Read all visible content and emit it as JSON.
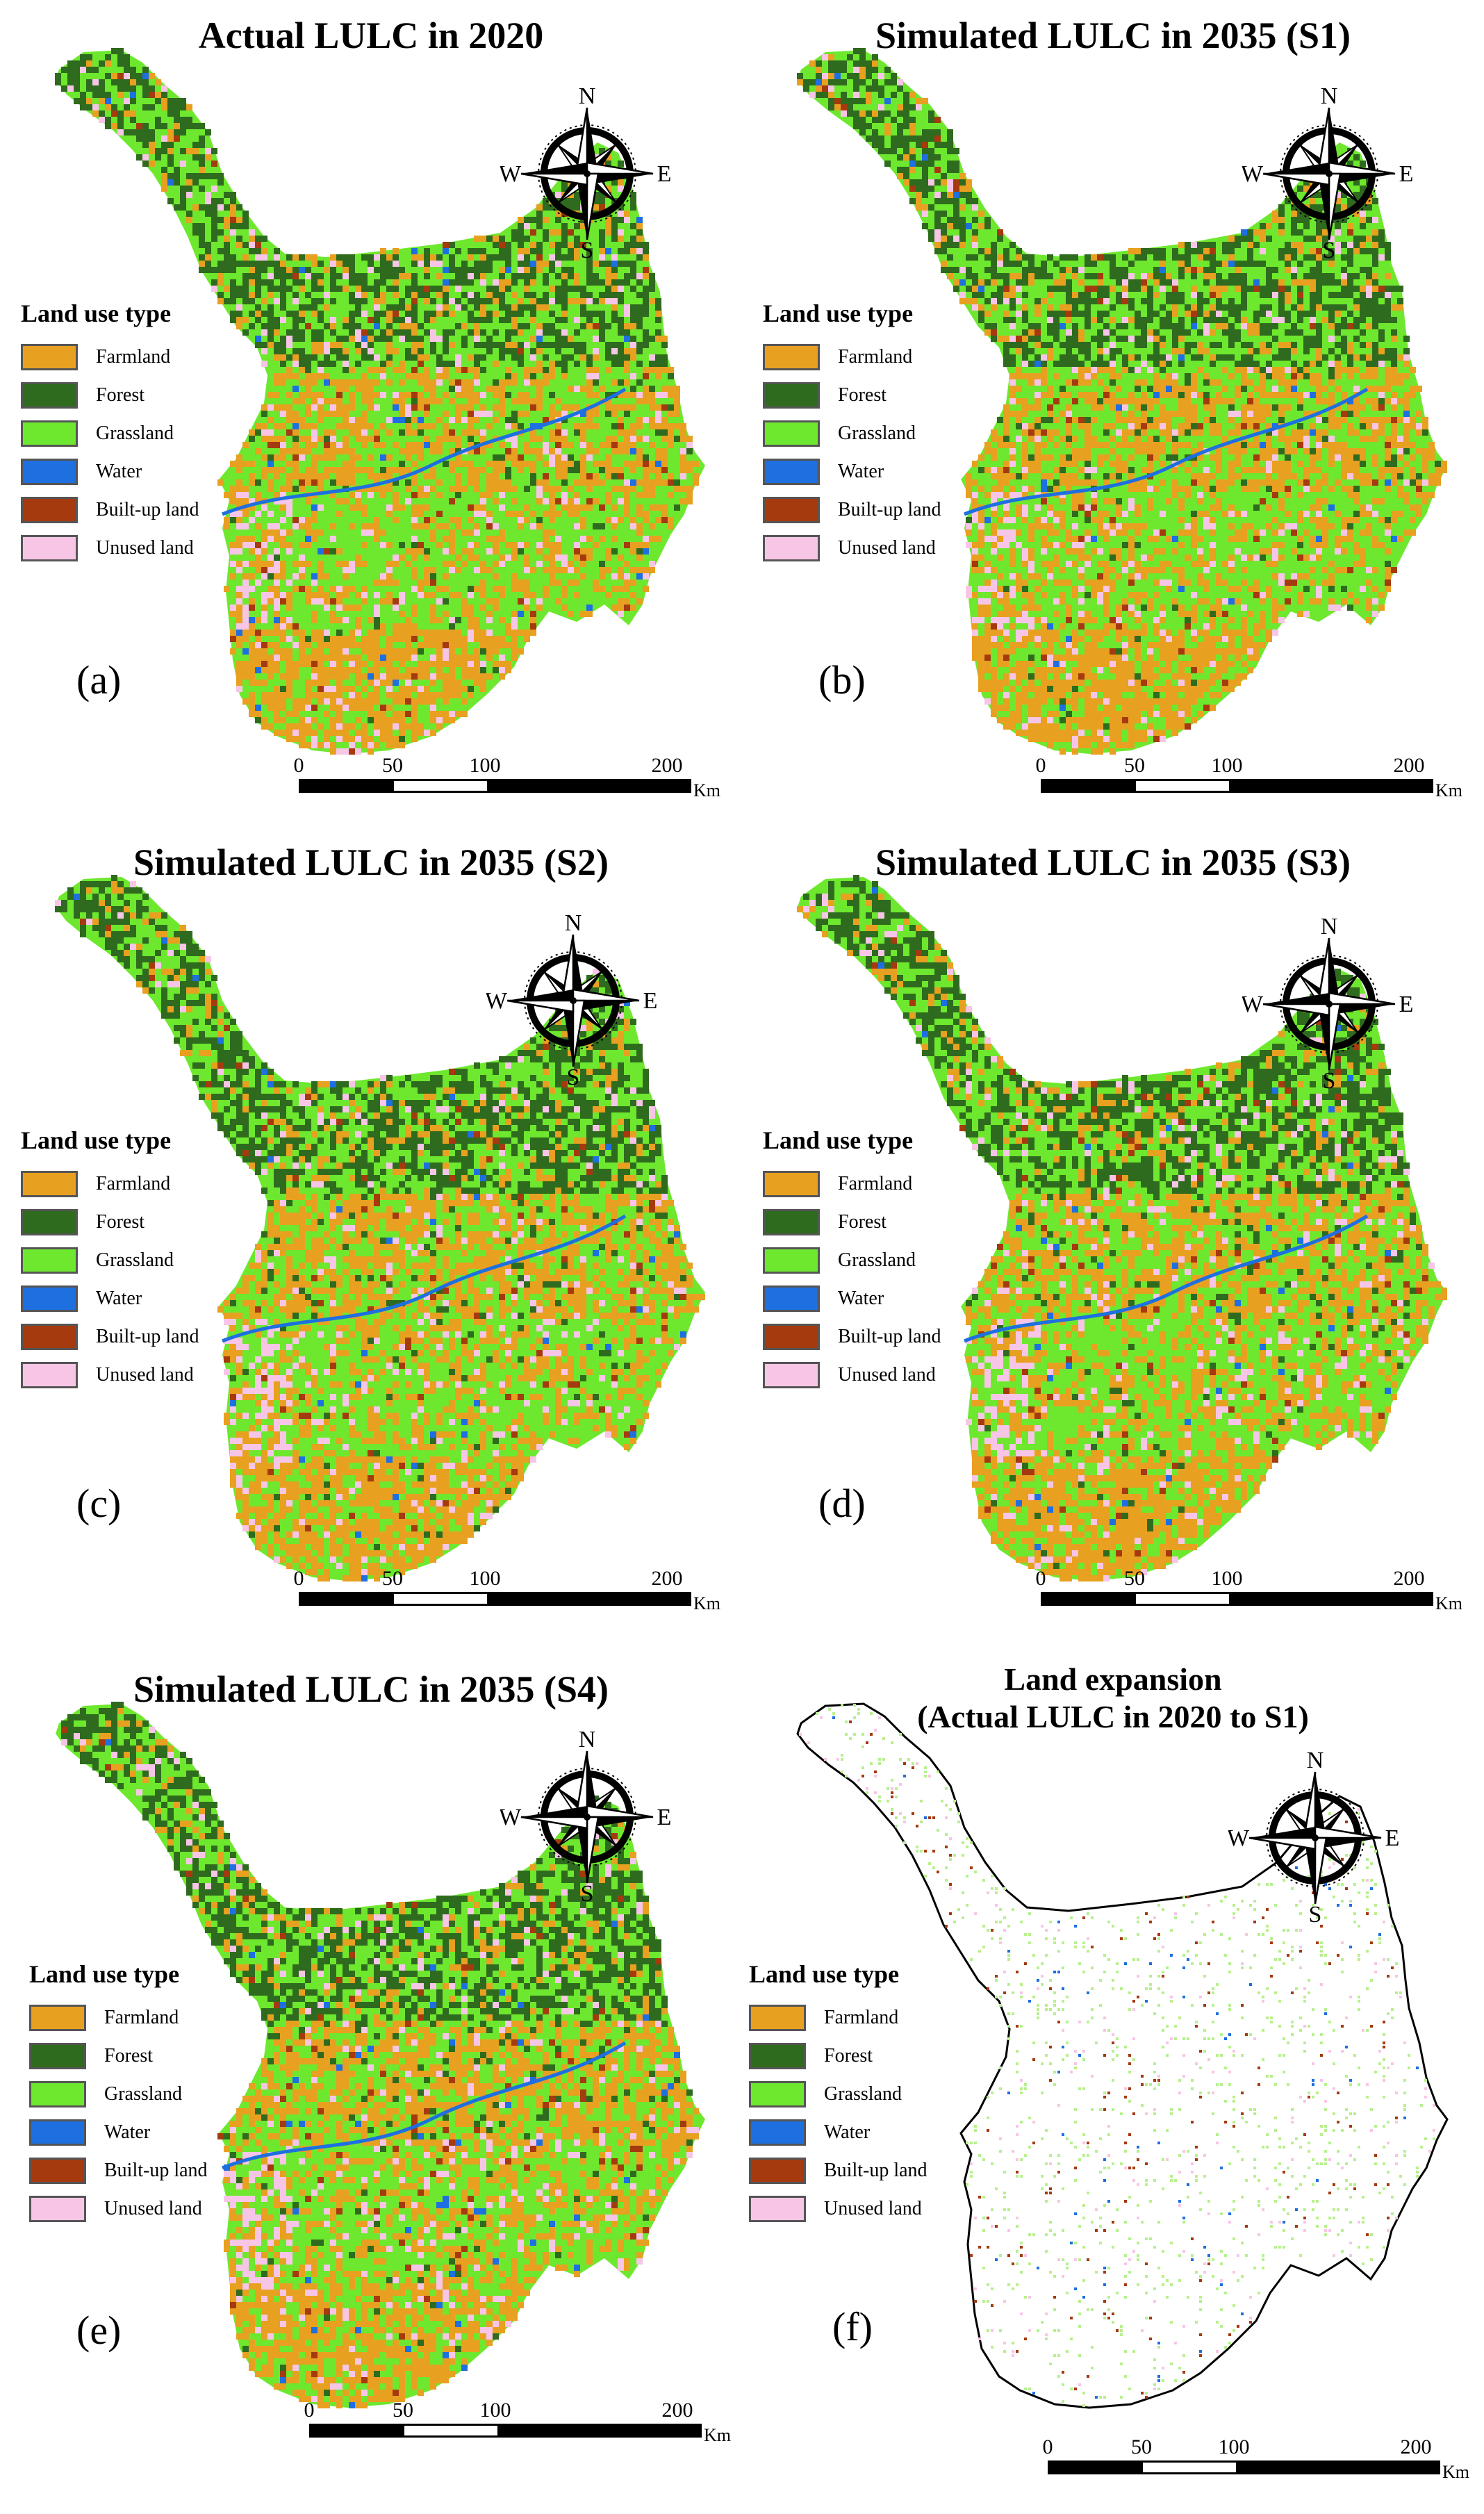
{
  "colors": {
    "farmland": "#E8A020",
    "forest": "#2F6B1E",
    "grassland": "#6EE82E",
    "water": "#1E6FE0",
    "builtup": "#A53A0F",
    "unused": "#F7C6E6"
  },
  "legend": {
    "title": "Land use type",
    "items": [
      "Farmland",
      "Forest",
      "Grassland",
      "Water",
      "Built-up land",
      "Unused land"
    ]
  },
  "compass": {
    "n": "N",
    "s": "S",
    "e": "E",
    "w": "W"
  },
  "scalebar": {
    "ticks": [
      "0",
      "50",
      "100",
      "200"
    ],
    "unit": "Km"
  },
  "panels": [
    {
      "id": "a",
      "label": "(a)",
      "title": "Actual LULC in 2020",
      "kind": "lulc"
    },
    {
      "id": "b",
      "label": "(b)",
      "title": "Simulated LULC in 2035 (S1)",
      "kind": "lulc"
    },
    {
      "id": "c",
      "label": "(c)",
      "title": "Simulated LULC in 2035 (S2)",
      "kind": "lulc"
    },
    {
      "id": "d",
      "label": "(d)",
      "title": "Simulated LULC in 2035 (S3)",
      "kind": "lulc"
    },
    {
      "id": "e",
      "label": "(e)",
      "title": "Simulated LULC in 2035 (S4)",
      "kind": "lulc"
    },
    {
      "id": "f",
      "label": "(f)",
      "title": "Land expansion\n(Actual LULC in 2020 to S1)",
      "kind": "expansion"
    }
  ]
}
